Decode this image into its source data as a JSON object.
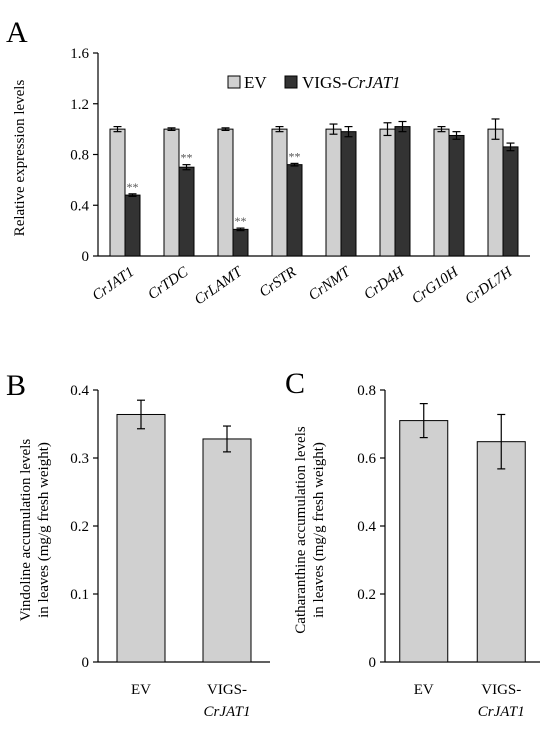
{
  "colors": {
    "ev": "#d0d0d0",
    "vigs": "#333333",
    "axis": "#000000"
  },
  "chart_data": [
    {
      "panel_label": "A",
      "type": "bar",
      "ylabel": "Relative expression levels",
      "ylim": [
        0,
        1.6
      ],
      "yticks": [
        "0",
        "0.4",
        "0.8",
        "1.2",
        "1.6"
      ],
      "categories": [
        "CrJAT1",
        "CrTDC",
        "CrLAMT",
        "CrSTR",
        "CrNMT",
        "CrD4H",
        "CrG10H",
        "CrDL7H"
      ],
      "legend": {
        "placement": "top",
        "entries": [
          {
            "name": "EV",
            "prefix": "EV",
            "italic": ""
          },
          {
            "name": "VIGS-CrJAT1",
            "prefix": "VIGS-",
            "italic": "CrJAT1"
          }
        ]
      },
      "series": [
        {
          "name": "EV",
          "values": [
            1.0,
            1.0,
            1.0,
            1.0,
            1.0,
            1.0,
            1.0,
            1.0
          ],
          "errors": [
            0.02,
            0.01,
            0.01,
            0.02,
            0.04,
            0.05,
            0.02,
            0.08
          ]
        },
        {
          "name": "VIGS-CrJAT1",
          "values": [
            0.48,
            0.7,
            0.21,
            0.72,
            0.98,
            1.02,
            0.95,
            0.86
          ],
          "errors": [
            0.01,
            0.02,
            0.01,
            0.01,
            0.04,
            0.04,
            0.03,
            0.03
          ]
        }
      ],
      "annotations": [
        "**",
        "**",
        "**",
        "**",
        "",
        "",
        "",
        ""
      ]
    },
    {
      "panel_label": "B",
      "type": "bar",
      "ylabel": [
        "Vindoline accumulation levels",
        "in leaves (mg/g fresh weight)"
      ],
      "ylim": [
        0,
        0.4
      ],
      "yticks": [
        "0",
        "0.1",
        "0.2",
        "0.3",
        "0.4"
      ],
      "categories": [
        [
          "EV",
          ""
        ],
        [
          "VIGS-",
          "CrJAT1"
        ]
      ],
      "values": [
        0.364,
        0.328
      ],
      "errors": [
        0.021,
        0.019
      ]
    },
    {
      "panel_label": "C",
      "type": "bar",
      "ylabel": [
        "Catharanthine accumulation levels",
        "in leaves (mg/g fresh weight)"
      ],
      "ylim": [
        0,
        0.8
      ],
      "yticks": [
        "0",
        "0.2",
        "0.4",
        "0.6",
        "0.8"
      ],
      "categories": [
        [
          "EV",
          ""
        ],
        [
          "VIGS-",
          "CrJAT1"
        ]
      ],
      "values": [
        0.71,
        0.648
      ],
      "errors": [
        0.05,
        0.08
      ]
    }
  ]
}
